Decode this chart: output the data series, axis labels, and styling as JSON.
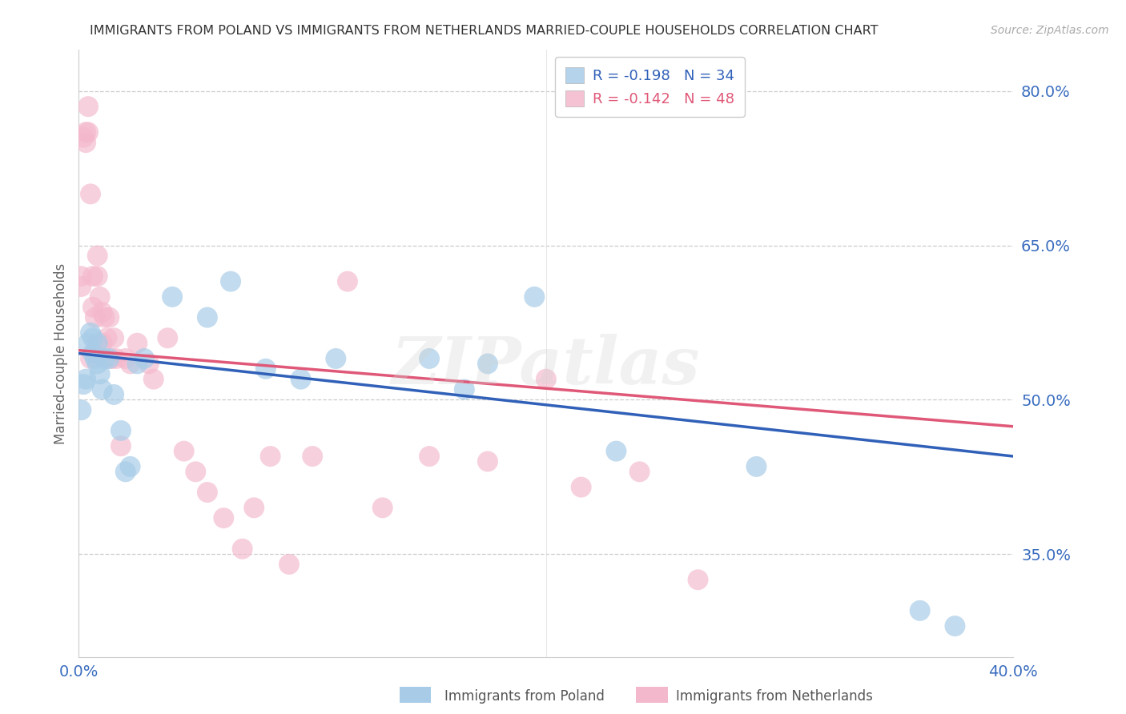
{
  "title": "IMMIGRANTS FROM POLAND VS IMMIGRANTS FROM NETHERLANDS MARRIED-COUPLE HOUSEHOLDS CORRELATION CHART",
  "source": "Source: ZipAtlas.com",
  "ylabel": "Married-couple Households",
  "xlim": [
    0.0,
    0.4
  ],
  "ylim": [
    0.25,
    0.84
  ],
  "yticks": [
    0.35,
    0.5,
    0.65,
    0.8
  ],
  "xticks": [
    0.0,
    0.1,
    0.2,
    0.3,
    0.4
  ],
  "ytick_labels": [
    "35.0%",
    "50.0%",
    "65.0%",
    "80.0%"
  ],
  "xtick_labels": [
    "0.0%",
    "",
    "",
    "",
    "40.0%"
  ],
  "poland_R": -0.198,
  "poland_N": 34,
  "netherlands_R": -0.142,
  "netherlands_N": 48,
  "poland_color": "#a8cce8",
  "netherlands_color": "#f4b8cc",
  "poland_line_color": "#3060b8",
  "netherlands_line_color": "#e05878",
  "legend_label_poland": "Immigrants from Poland",
  "legend_label_netherlands": "Immigrants from Netherlands",
  "poland_x": [
    0.001,
    0.002,
    0.003,
    0.004,
    0.005,
    0.006,
    0.006,
    0.007,
    0.008,
    0.008,
    0.009,
    0.01,
    0.011,
    0.013,
    0.015,
    0.018,
    0.02,
    0.022,
    0.025,
    0.028,
    0.04,
    0.055,
    0.065,
    0.08,
    0.095,
    0.11,
    0.15,
    0.175,
    0.195,
    0.23,
    0.165,
    0.29,
    0.36,
    0.375
  ],
  "poland_y": [
    0.49,
    0.515,
    0.52,
    0.555,
    0.565,
    0.56,
    0.545,
    0.54,
    0.555,
    0.535,
    0.525,
    0.51,
    0.54,
    0.54,
    0.505,
    0.47,
    0.43,
    0.435,
    0.535,
    0.54,
    0.6,
    0.58,
    0.615,
    0.53,
    0.52,
    0.54,
    0.54,
    0.535,
    0.6,
    0.45,
    0.51,
    0.435,
    0.295,
    0.28
  ],
  "netherlands_x": [
    0.001,
    0.001,
    0.002,
    0.003,
    0.003,
    0.004,
    0.004,
    0.005,
    0.005,
    0.006,
    0.006,
    0.007,
    0.007,
    0.008,
    0.008,
    0.009,
    0.01,
    0.01,
    0.011,
    0.012,
    0.013,
    0.014,
    0.015,
    0.016,
    0.018,
    0.02,
    0.022,
    0.025,
    0.03,
    0.032,
    0.038,
    0.045,
    0.05,
    0.055,
    0.062,
    0.07,
    0.075,
    0.082,
    0.09,
    0.1,
    0.115,
    0.13,
    0.15,
    0.175,
    0.2,
    0.215,
    0.24,
    0.265
  ],
  "netherlands_y": [
    0.62,
    0.61,
    0.755,
    0.75,
    0.76,
    0.76,
    0.785,
    0.54,
    0.7,
    0.59,
    0.62,
    0.545,
    0.58,
    0.64,
    0.62,
    0.6,
    0.555,
    0.585,
    0.58,
    0.56,
    0.58,
    0.54,
    0.56,
    0.54,
    0.455,
    0.54,
    0.535,
    0.555,
    0.535,
    0.52,
    0.56,
    0.45,
    0.43,
    0.41,
    0.385,
    0.355,
    0.395,
    0.445,
    0.34,
    0.445,
    0.615,
    0.395,
    0.445,
    0.44,
    0.52,
    0.415,
    0.43,
    0.325
  ],
  "poland_intercept": 0.545,
  "poland_slope": -0.25,
  "netherlands_intercept": 0.548,
  "netherlands_slope": -0.185,
  "background_color": "#ffffff",
  "grid_color": "#cccccc",
  "title_color": "#333333",
  "axis_color": "#3a6dbf",
  "watermark": "ZIPatlas"
}
